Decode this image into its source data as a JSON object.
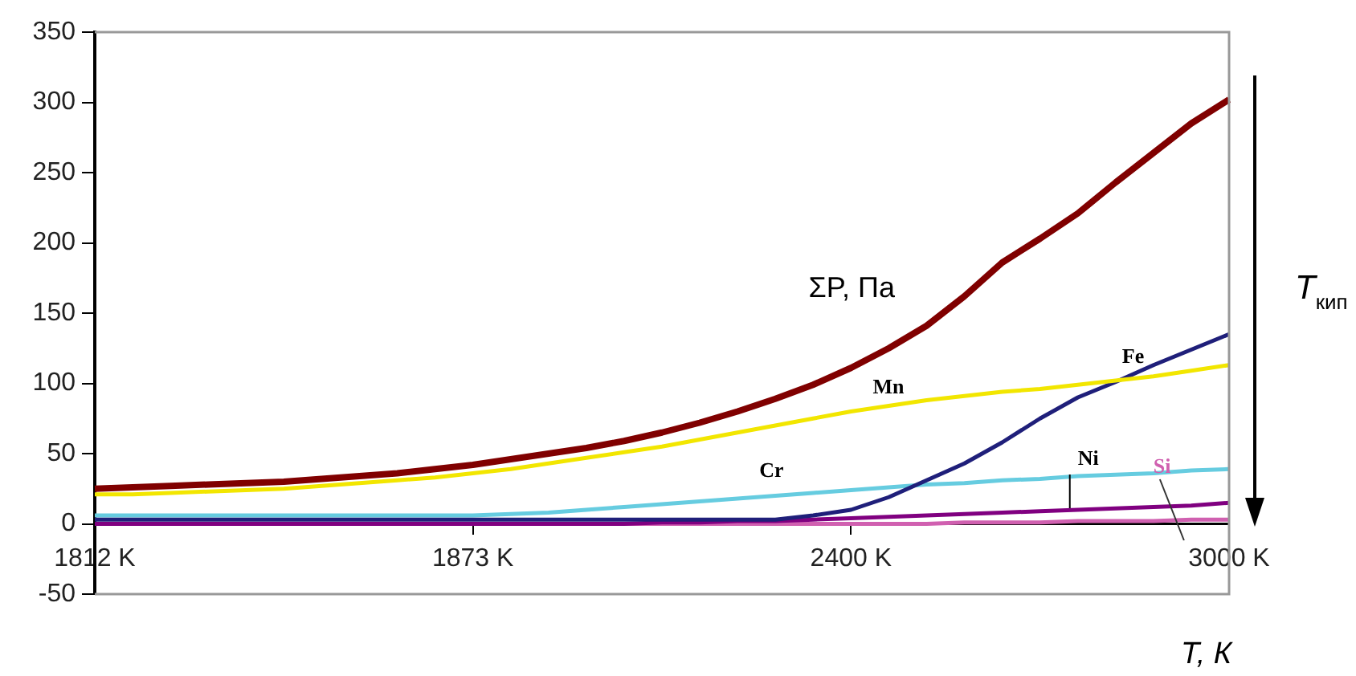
{
  "chart_data": {
    "type": "line",
    "xlabel": "T, К",
    "annotations": [
      "T$_{кип}$"
    ],
    "categories": [
      "1812 K",
      null,
      null,
      null,
      null,
      null,
      null,
      null,
      null,
      null,
      "1873 K",
      null,
      null,
      null,
      null,
      null,
      null,
      null,
      null,
      null,
      "2400 K",
      null,
      null,
      null,
      null,
      null,
      null,
      null,
      null,
      null,
      "3000 K"
    ],
    "ylim": [
      -50,
      350
    ],
    "yticks": [
      -50,
      0,
      50,
      100,
      150,
      200,
      250,
      300,
      350
    ],
    "legend": false,
    "marker": "none",
    "line_style": "solid",
    "series": [
      {
        "name": "ΣP, Па",
        "color": "#800000",
        "values": [
          25,
          26,
          27,
          28,
          29,
          30,
          32,
          34,
          36,
          39,
          42,
          46,
          50,
          54,
          59,
          65,
          72,
          80,
          89,
          99,
          111,
          125,
          141,
          162,
          186,
          203,
          221,
          243,
          264,
          285,
          302
        ]
      },
      {
        "name": "Mn",
        "color": "#f2e600",
        "values": [
          21,
          21,
          22,
          23,
          24,
          25,
          27,
          29,
          31,
          33,
          36,
          39,
          43,
          47,
          51,
          55,
          60,
          65,
          70,
          75,
          80,
          84,
          88,
          91,
          94,
          96,
          99,
          102,
          105,
          109,
          113
        ]
      },
      {
        "name": "Fe",
        "color": "#1f1f7a",
        "values": [
          3,
          3,
          3,
          3,
          3,
          3,
          3,
          3,
          3,
          3,
          3,
          3,
          3,
          3,
          3,
          3,
          3,
          3,
          3,
          6,
          10,
          19,
          31,
          43,
          58,
          75,
          90,
          101,
          113,
          124,
          135
        ]
      },
      {
        "name": "Cr",
        "color": "#66cce0",
        "values": [
          6,
          6,
          6,
          6,
          6,
          6,
          6,
          6,
          6,
          6,
          6,
          7,
          8,
          10,
          12,
          14,
          16,
          18,
          20,
          22,
          24,
          26,
          28,
          29,
          31,
          32,
          34,
          35,
          36,
          38,
          39
        ]
      },
      {
        "name": "Ni",
        "color": "#800080",
        "values": [
          0,
          0,
          0,
          0,
          0,
          0,
          0,
          0,
          0,
          0,
          0,
          0,
          0,
          0,
          0,
          1,
          1,
          2,
          2,
          3,
          4,
          5,
          6,
          7,
          8,
          9,
          10,
          11,
          12,
          13,
          15
        ]
      },
      {
        "name": "Si",
        "color": "#d060b0",
        "values": [
          null,
          null,
          null,
          null,
          null,
          null,
          null,
          null,
          null,
          null,
          null,
          null,
          null,
          null,
          0,
          0,
          0,
          0,
          0,
          0,
          0,
          0,
          0,
          1,
          1,
          1,
          2,
          2,
          2,
          3,
          3
        ]
      }
    ]
  }
}
